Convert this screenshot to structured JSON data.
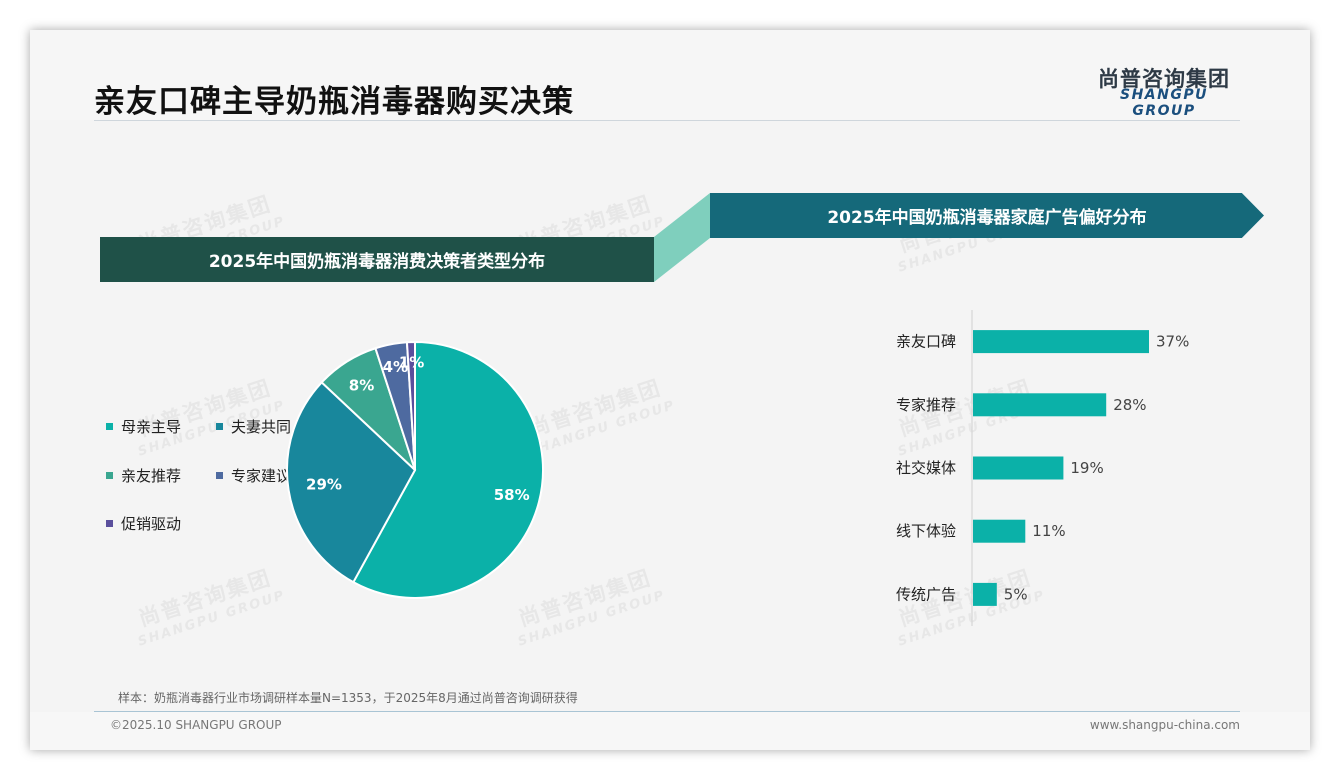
{
  "header": {
    "title": "亲友口碑主导奶瓶消毒器购买决策",
    "logo_cn": "尚普咨询集团",
    "logo_en": "SHANGPU GROUP"
  },
  "watermark": {
    "cn": "尚普咨询集团",
    "en": "SHANGPU GROUP"
  },
  "colors": {
    "left_banner": "#1f5148",
    "right_banner": "#15697a",
    "connector": "#7fcfbd",
    "bar": "#0bb1a8"
  },
  "chart_data": [
    {
      "type": "pie",
      "title": "2025年中国奶瓶消毒器消费决策者类型分布",
      "series": [
        {
          "name": "母亲主导",
          "value": 58,
          "label": "58%",
          "color": "#0bb1a8"
        },
        {
          "name": "夫妻共同",
          "value": 29,
          "label": "29%",
          "color": "#18879c"
        },
        {
          "name": "亲友推荐",
          "value": 8,
          "label": "8%",
          "color": "#3aa690"
        },
        {
          "name": "专家建议",
          "value": 4,
          "label": "4%",
          "color": "#4e6aa0"
        },
        {
          "name": "促销驱动",
          "value": 1,
          "label": "1%",
          "color": "#5a4f9c"
        }
      ],
      "legend_position": "left"
    },
    {
      "type": "bar",
      "orientation": "horizontal",
      "title": "2025年中国奶瓶消毒器家庭广告偏好分布",
      "categories": [
        "亲友口碑",
        "专家推荐",
        "社交媒体",
        "线下体验",
        "传统广告"
      ],
      "values": [
        37,
        28,
        19,
        11,
        5
      ],
      "value_labels": [
        "37%",
        "28%",
        "19%",
        "11%",
        "5%"
      ],
      "xlim": [
        0,
        40
      ],
      "grid": false
    }
  ],
  "footer": {
    "note": "样本：奶瓶消毒器行业市场调研样本量N=1353，于2025年8月通过尚普咨询调研获得",
    "copyright": "©2025.10 SHANGPU GROUP",
    "website": "www.shangpu-china.com"
  }
}
